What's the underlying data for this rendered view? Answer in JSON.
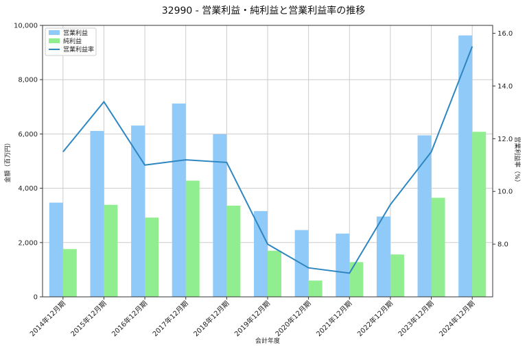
{
  "chart_data": {
    "type": "bar",
    "title": "32990 - 営業利益・純利益と営業利益率の推移",
    "xlabel": "会計年度",
    "ylabel": "金額（百万円）",
    "y2label": "営業利益率（%）",
    "categories": [
      "2014年12月期",
      "2015年12月期",
      "2016年12月期",
      "2017年12月期",
      "2018年12月期",
      "2019年12月期",
      "2020年12月期",
      "2021年12月期",
      "2022年12月期",
      "2023年12月期",
      "2024年12月期"
    ],
    "series": [
      {
        "name": "営業利益",
        "type": "bar",
        "axis": "left",
        "color": "#90CAF9",
        "values": [
          3470,
          6110,
          6310,
          7120,
          5990,
          3160,
          2460,
          2330,
          2960,
          5950,
          9630
        ]
      },
      {
        "name": "純利益",
        "type": "bar",
        "axis": "left",
        "color": "#90EE90",
        "values": [
          1760,
          3390,
          2920,
          4280,
          3360,
          1700,
          600,
          1280,
          1560,
          3650,
          6080
        ]
      },
      {
        "name": "営業利益率",
        "type": "line",
        "axis": "right",
        "color": "#2E86C1",
        "values": [
          11.5,
          13.4,
          11.0,
          11.2,
          11.1,
          8.0,
          7.1,
          6.9,
          9.5,
          11.5,
          15.5
        ]
      }
    ],
    "ylim": [
      0,
      10000
    ],
    "y2lim": [
      6.0,
      16.3
    ],
    "yticks": [
      "0",
      "2,000",
      "4,000",
      "6,000",
      "8,000",
      "10,000"
    ],
    "y2ticks": [
      "8.0",
      "10.0",
      "12.0",
      "14.0",
      "16.0"
    ],
    "grid": true,
    "legend_position": "top-left"
  }
}
